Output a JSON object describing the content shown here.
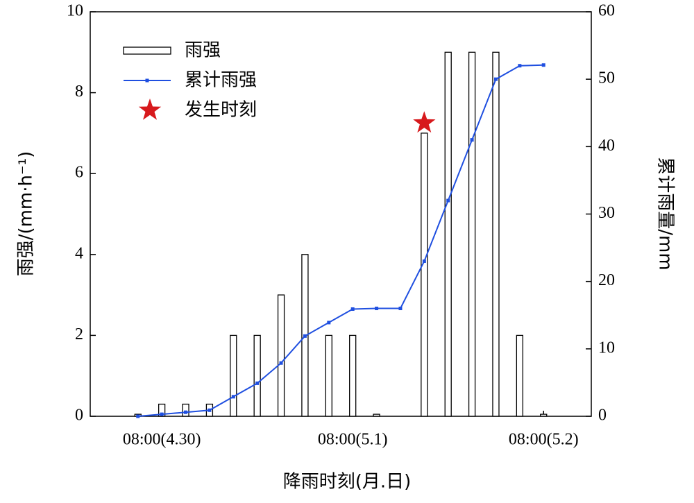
{
  "chart_data": {
    "type": "bar",
    "x": [
      -3,
      0,
      3,
      6,
      9,
      12,
      15,
      18,
      21,
      24,
      27,
      30,
      33,
      36,
      39,
      42,
      45,
      48
    ],
    "series": [
      {
        "name": "雨强",
        "type": "bar",
        "color": "#ffffff",
        "values": [
          0.05,
          0.3,
          0.3,
          0.3,
          2,
          2,
          3,
          4,
          2,
          2,
          0.05,
          0,
          7,
          9,
          9,
          9,
          2,
          0.05
        ]
      },
      {
        "name": "累计雨强",
        "type": "line",
        "axis": "y2",
        "color": "#1f4fe0",
        "values": [
          0,
          0.3,
          0.6,
          0.9,
          2.9,
          4.9,
          7.9,
          11.9,
          13.9,
          15.9,
          16,
          16,
          23,
          32,
          41,
          50,
          52,
          52.1
        ]
      },
      {
        "name": "发生时刻",
        "type": "scatter",
        "color": "#d7191c",
        "x": [
          33
        ],
        "values": [
          7.25
        ]
      }
    ],
    "xlim": [
      -9,
      54
    ],
    "xticks": [
      {
        "value": 0,
        "label": "08:00(4.30)"
      },
      {
        "value": 24,
        "label": "08:00(5.1)"
      },
      {
        "value": 48,
        "label": "08:00(5.2)"
      }
    ],
    "ylim": [
      0,
      10
    ],
    "yticks": [
      0,
      2,
      4,
      6,
      8,
      10
    ],
    "y2lim": [
      0,
      60
    ],
    "y2ticks": [
      0,
      10,
      20,
      30,
      40,
      50,
      60
    ],
    "xlabel": "降雨时刻(月.日)",
    "ylabel": "雨强/(mm·h⁻¹)",
    "y2label": "累计雨量/mm",
    "legend": "upper left"
  }
}
